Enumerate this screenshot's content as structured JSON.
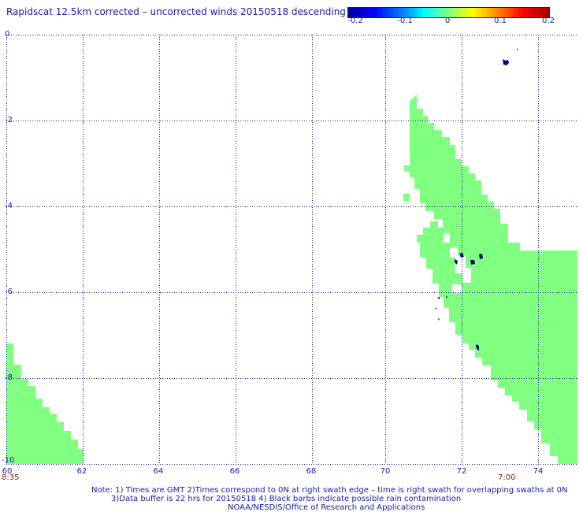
{
  "title": "Rapidscat 12.5km corrected – uncorrected winds 20150518 descending",
  "colorbar": {
    "ticks": [
      "-0.2",
      "-0.1",
      "0",
      "0.1",
      "0.2"
    ],
    "range": [
      -0.2,
      0.2
    ]
  },
  "axes": {
    "x_ticks": [
      "60",
      "62",
      "64",
      "66",
      "68",
      "70",
      "72",
      "74"
    ],
    "y_ticks": [
      "0",
      "-2",
      "-4",
      "-6",
      "-8",
      "-10"
    ],
    "x_range": [
      60,
      75
    ],
    "y_range": [
      0,
      -10
    ],
    "grid": true
  },
  "swath_times": {
    "left": "8:35",
    "right": "7:00"
  },
  "swath_value_color": "#80ff80",
  "land_color": "#000080",
  "notes": {
    "line1": "Note: 1) Times are GMT 2)Times correspond to 0N at right swath edge – time is right swath for overlapping swaths at 0N",
    "line2": "3)Data buffer is 22 hrs for 20150518 4) Black barbs indicate possible rain contamination",
    "line3": "NOAA/NESDIS/Office of Research and Applications"
  }
}
